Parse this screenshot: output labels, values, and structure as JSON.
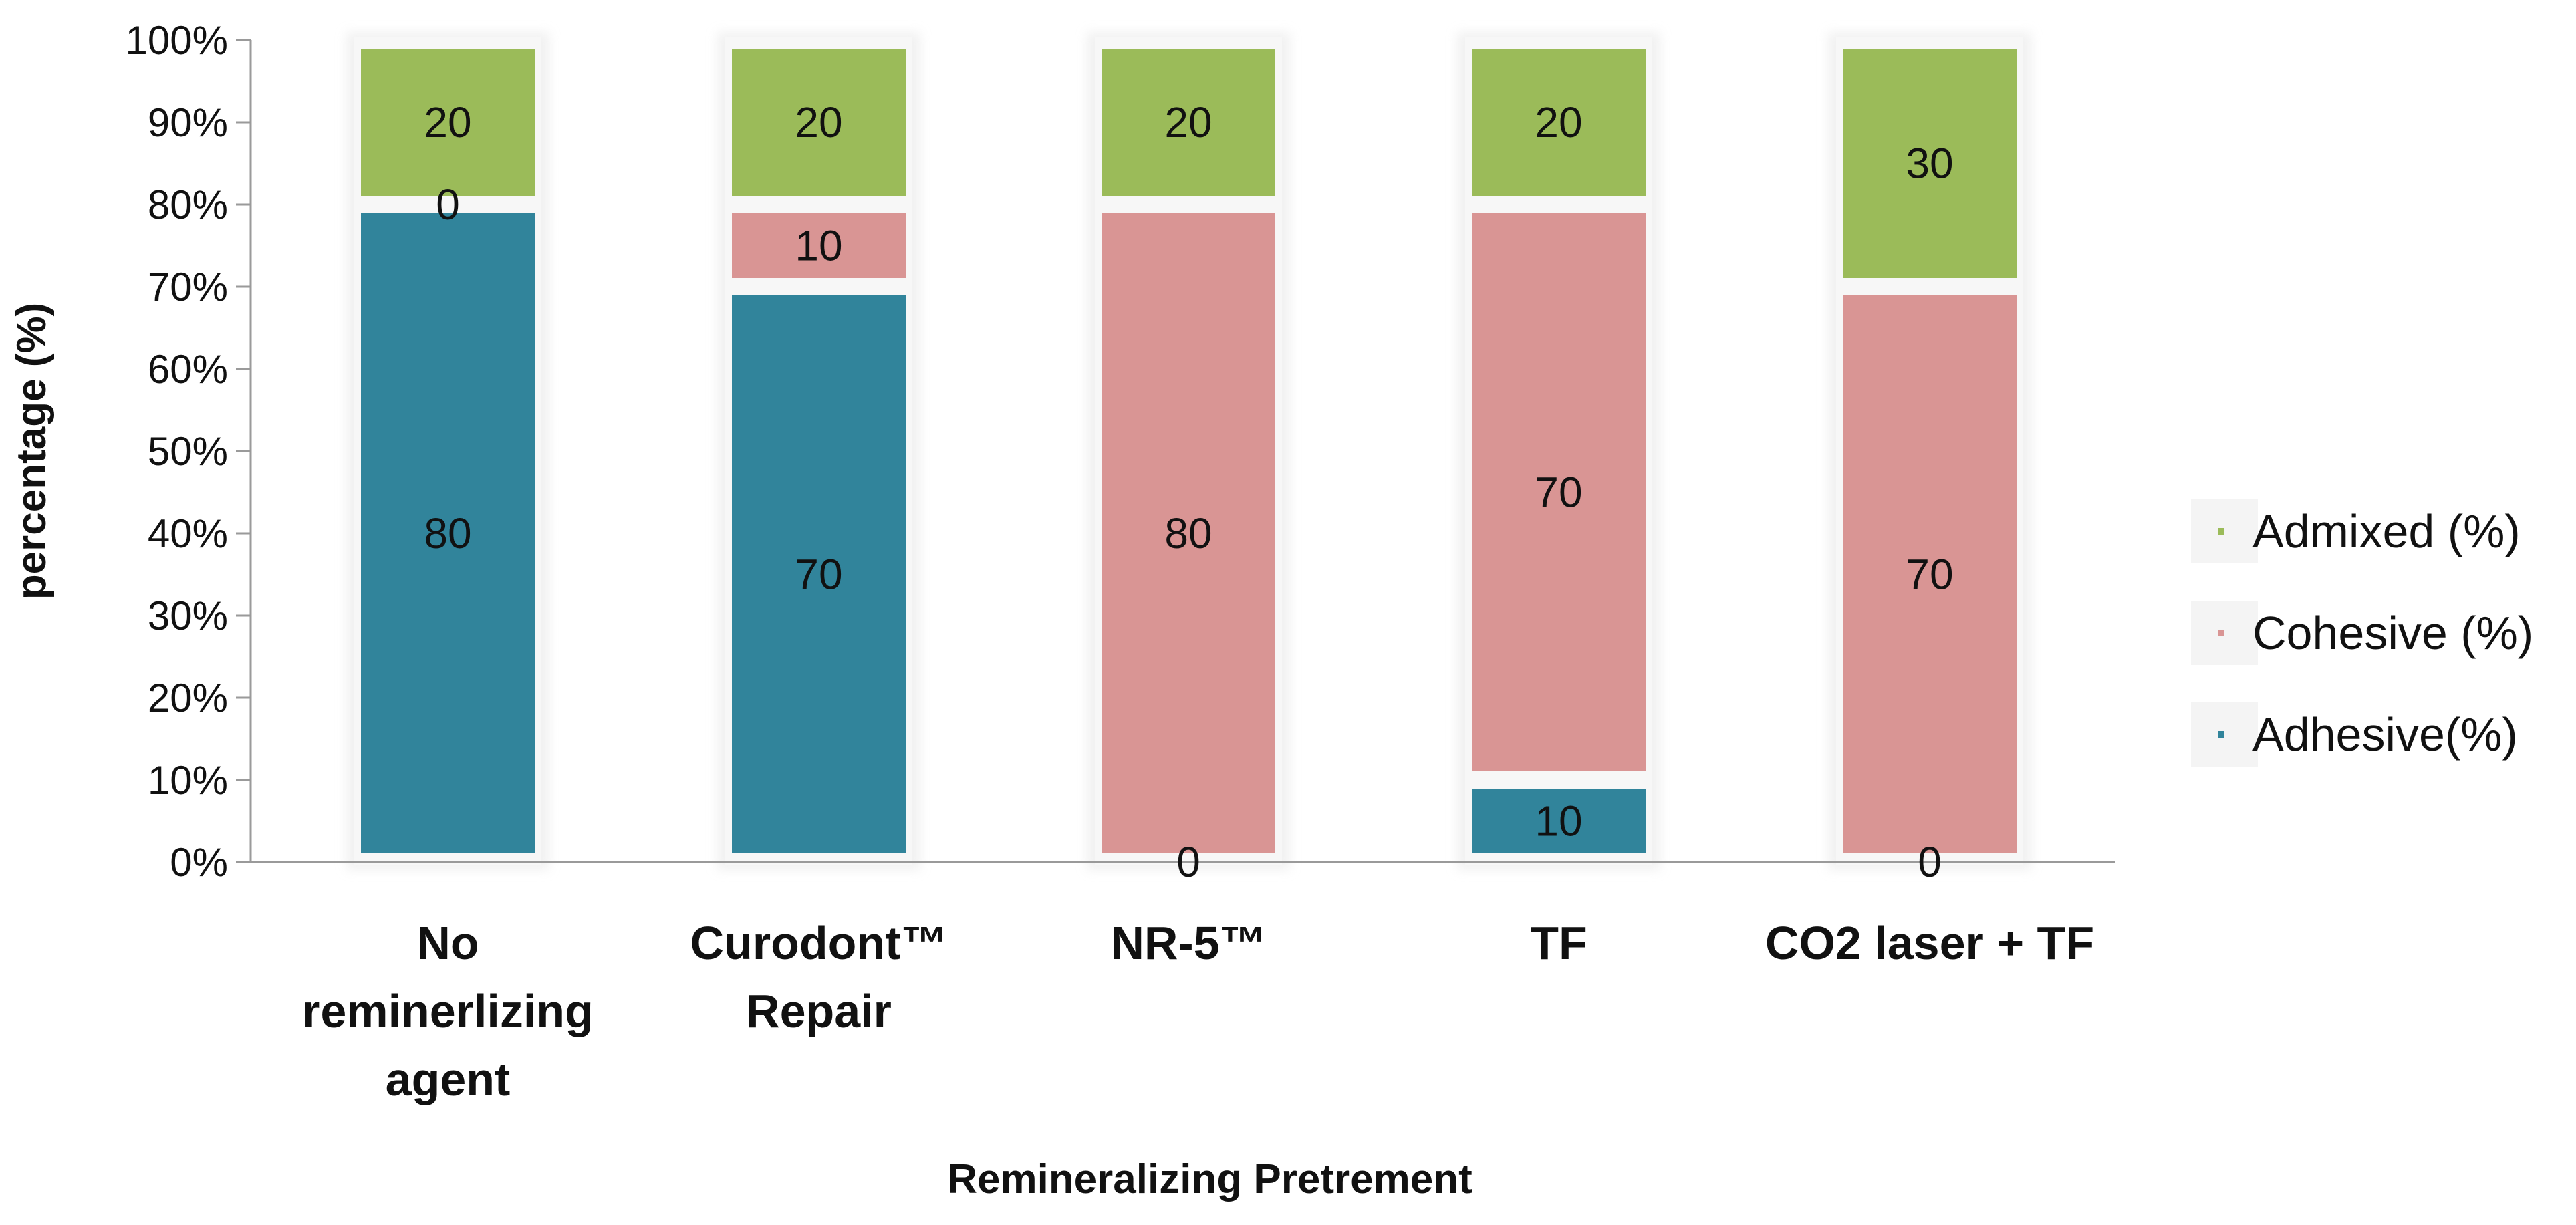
{
  "chart_data": {
    "type": "bar",
    "stacked": true,
    "percent_stacked": true,
    "title": "",
    "xlabel": "Remineralizing Pretrement",
    "ylabel": "percentage (%)",
    "ylim": [
      0,
      100
    ],
    "yticks": [
      "0%",
      "10%",
      "20%",
      "30%",
      "40%",
      "50%",
      "60%",
      "70%",
      "80%",
      "90%",
      "100%"
    ],
    "categories": [
      [
        "No",
        "reminerlizing",
        "agent"
      ],
      [
        "Curodont™",
        "Repair"
      ],
      [
        "NR-5™"
      ],
      [
        "TF"
      ],
      [
        "CO2 laser + TF"
      ]
    ],
    "series": [
      {
        "name": "Adhesive(%)",
        "color": "#31849b",
        "values": [
          80,
          70,
          0,
          10,
          0
        ]
      },
      {
        "name": "Cohesive (%)",
        "color": "#d99594",
        "values": [
          0,
          10,
          80,
          70,
          70
        ]
      },
      {
        "name": "Admixed (%)",
        "color": "#9bbb59",
        "values": [
          20,
          20,
          20,
          20,
          30
        ]
      }
    ],
    "legend_position": "right",
    "legend_order": [
      "Admixed (%)",
      "Cohesive (%)",
      "Adhesive(%)"
    ],
    "grid": false
  }
}
